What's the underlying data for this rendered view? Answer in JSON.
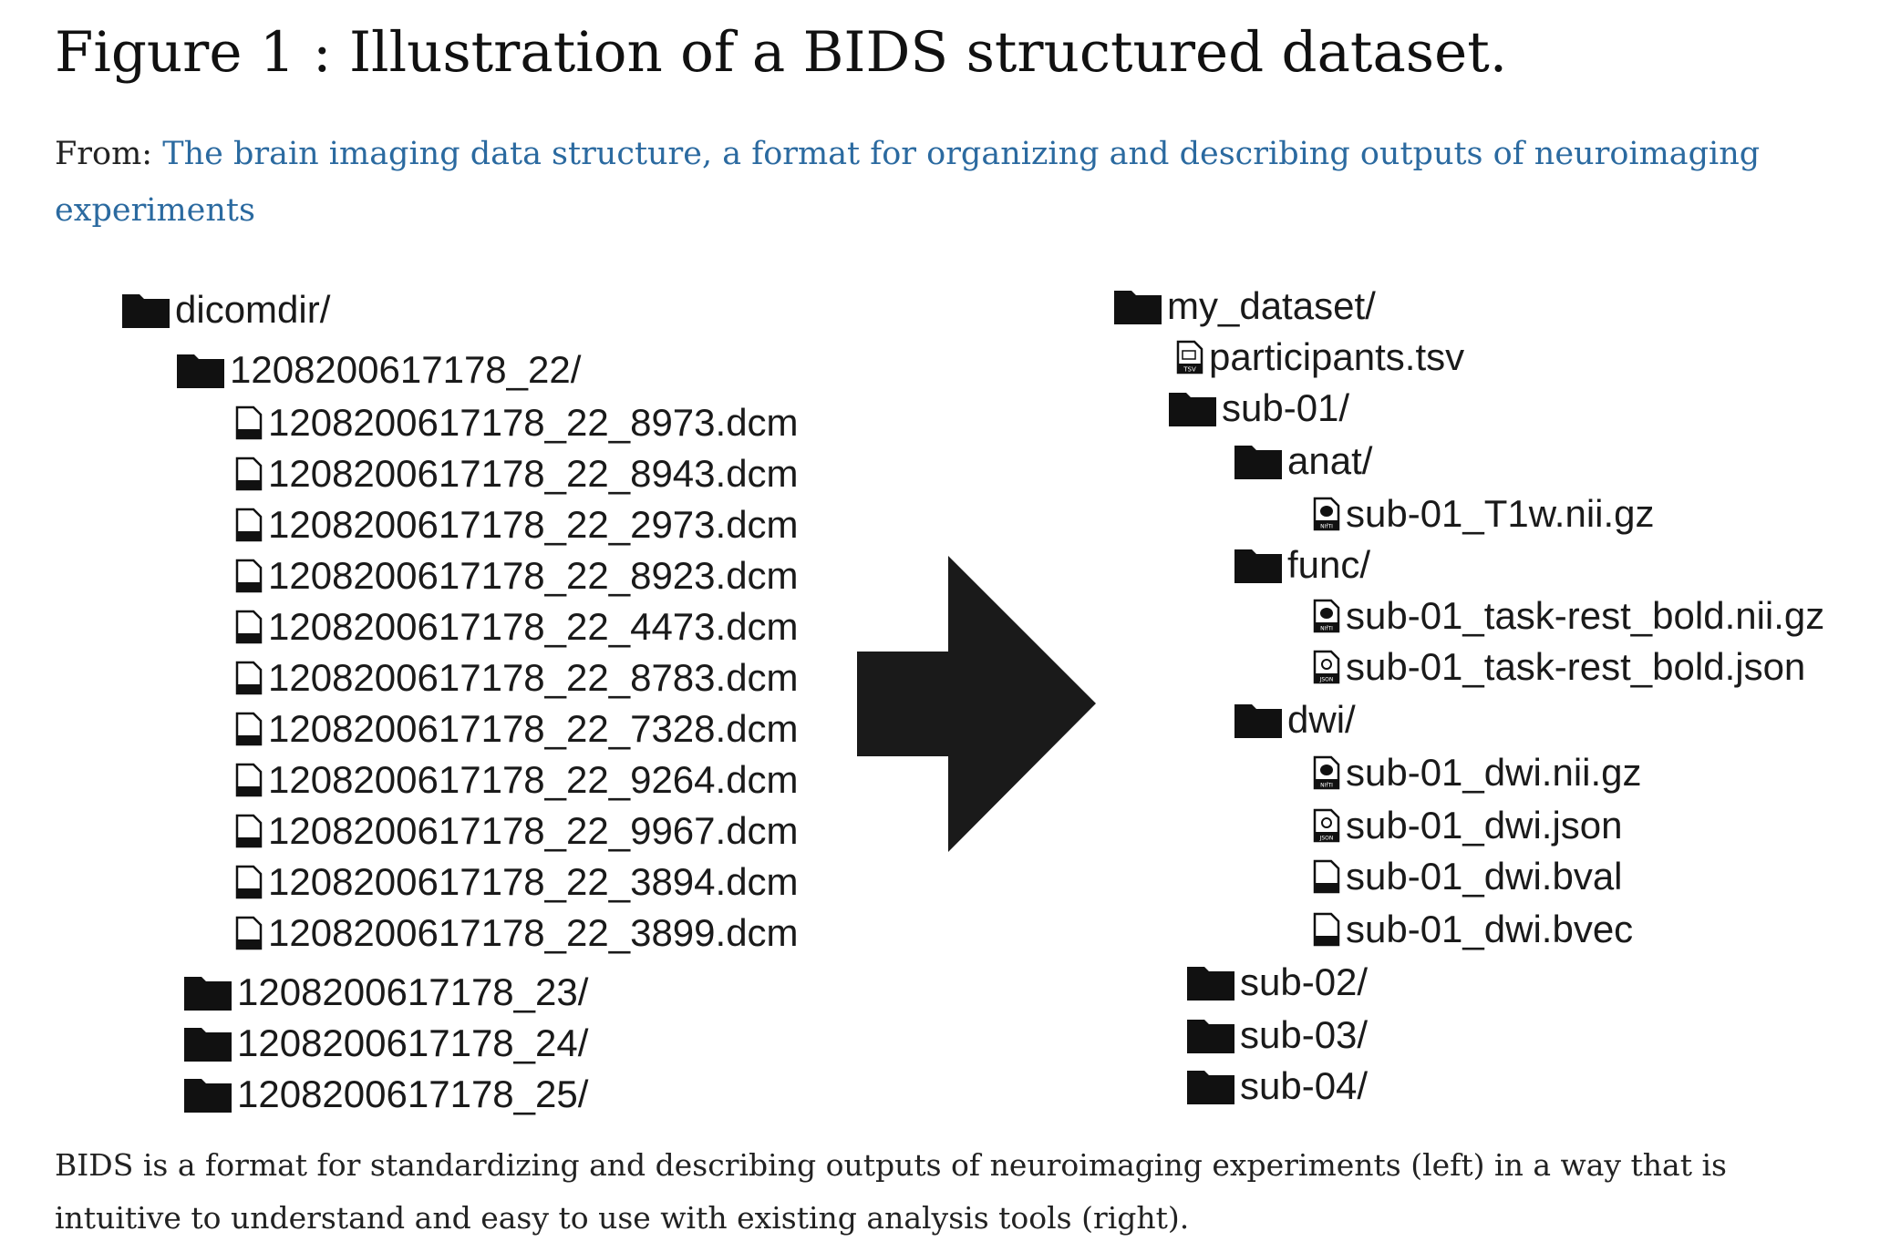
{
  "title": "Figure 1 : Illustration of a BIDS structured dataset.",
  "from_label": "From:",
  "source_link": "The brain imaging data structure, a format for organizing and describing outputs of neuroimaging experiments",
  "caption": "BIDS is a format for standardizing and describing outputs of neuroimaging experiments (left) in a way that is intuitive to understand and easy to use with existing analysis tools (right).",
  "left_tree": {
    "root": "dicomdir/",
    "folder_open": "1208200617178_22/",
    "files": [
      "1208200617178_22_8973.dcm",
      "1208200617178_22_8943.dcm",
      "1208200617178_22_2973.dcm",
      "1208200617178_22_8923.dcm",
      "1208200617178_22_4473.dcm",
      "1208200617178_22_8783.dcm",
      "1208200617178_22_7328.dcm",
      "1208200617178_22_9264.dcm",
      "1208200617178_22_9967.dcm",
      "1208200617178_22_3894.dcm",
      "1208200617178_22_3899.dcm"
    ],
    "folders_closed": [
      "1208200617178_23/",
      "1208200617178_24/",
      "1208200617178_25/"
    ]
  },
  "right_tree": {
    "root": "my_dataset/",
    "participants": "participants.tsv",
    "sub01": "sub-01/",
    "anat": "anat/",
    "anat_file": "sub-01_T1w.nii.gz",
    "func": "func/",
    "func_files": [
      "sub-01_task-rest_bold.nii.gz",
      "sub-01_task-rest_bold.json"
    ],
    "dwi": "dwi/",
    "dwi_files": [
      "sub-01_dwi.nii.gz",
      "sub-01_dwi.json",
      "sub-01_dwi.bval",
      "sub-01_dwi.bvec"
    ],
    "other_subjects": [
      "sub-02/",
      "sub-03/",
      "sub-04/"
    ]
  },
  "file_type_badges": {
    "tsv": "TSV",
    "nifti": "NIfTI",
    "json": "JSON"
  },
  "colors": {
    "link": "#2b6aa0",
    "icon": "#111111",
    "text": "#1a1a1a"
  }
}
